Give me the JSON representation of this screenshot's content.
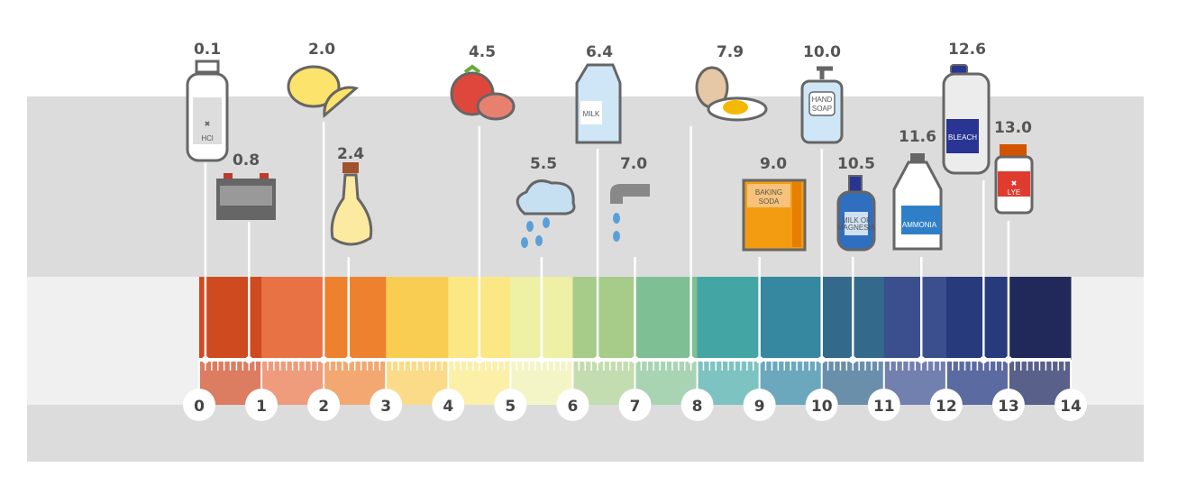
{
  "scale": {
    "min": 0,
    "max": 14,
    "numbers": [
      "0",
      "1",
      "2",
      "3",
      "4",
      "5",
      "6",
      "7",
      "8",
      "9",
      "10",
      "11",
      "12",
      "13",
      "14"
    ],
    "colors": [
      "#cf4a1f",
      "#e97245",
      "#ee812d",
      "#f9cd52",
      "#fbe783",
      "#eef0a5",
      "#a7cc8a",
      "#7fbf94",
      "#44a6a4",
      "#3687a0",
      "#336a8c",
      "#3b4f8f",
      "#263a7c",
      "#20295a"
    ],
    "tick_colors": [
      "#dc7c60",
      "#ef9c7c",
      "#f2a870",
      "#fbdb88",
      "#fcefa8",
      "#f4f5c6",
      "#c4ddb0",
      "#a9d4b4",
      "#7dc3c1",
      "#6ba8bd",
      "#6a8fab",
      "#7280b0",
      "#5c6aa2",
      "#59618a"
    ]
  },
  "items": [
    {
      "value": "0.1",
      "ph": 0.1,
      "icon": "hcl-bottle-icon",
      "text": [
        "HCl"
      ]
    },
    {
      "value": "0.8",
      "ph": 0.8,
      "icon": "battery-icon",
      "text": []
    },
    {
      "value": "2.0",
      "ph": 2.0,
      "icon": "lemon-icon",
      "text": []
    },
    {
      "value": "2.4",
      "ph": 2.4,
      "icon": "vinegar-cruet-icon",
      "text": []
    },
    {
      "value": "4.5",
      "ph": 4.5,
      "icon": "tomato-icon",
      "text": []
    },
    {
      "value": "5.5",
      "ph": 5.5,
      "icon": "rain-cloud-icon",
      "text": []
    },
    {
      "value": "6.4",
      "ph": 6.4,
      "icon": "milk-carton-icon",
      "text": [
        "MILK"
      ]
    },
    {
      "value": "7.0",
      "ph": 7.0,
      "icon": "faucet-icon",
      "text": []
    },
    {
      "value": "7.9",
      "ph": 7.9,
      "icon": "egg-icon",
      "text": []
    },
    {
      "value": "9.0",
      "ph": 9.0,
      "icon": "baking-soda-box-icon",
      "text": [
        "BAKING",
        "SODA"
      ]
    },
    {
      "value": "10.0",
      "ph": 10.0,
      "icon": "hand-soap-icon",
      "text": [
        "HAND",
        "SOAP"
      ]
    },
    {
      "value": "10.5",
      "ph": 10.5,
      "icon": "milk-of-magnesia-icon",
      "text": [
        "MILK OF",
        "MAGNESIA"
      ]
    },
    {
      "value": "11.6",
      "ph": 11.6,
      "icon": "ammonia-jug-icon",
      "text": [
        "AMMONIA"
      ]
    },
    {
      "value": "12.6",
      "ph": 12.6,
      "icon": "bleach-bottle-icon",
      "text": [
        "BLEACH"
      ]
    },
    {
      "value": "13.0",
      "ph": 13.0,
      "icon": "lye-jar-icon",
      "text": [
        "LYE"
      ]
    }
  ]
}
